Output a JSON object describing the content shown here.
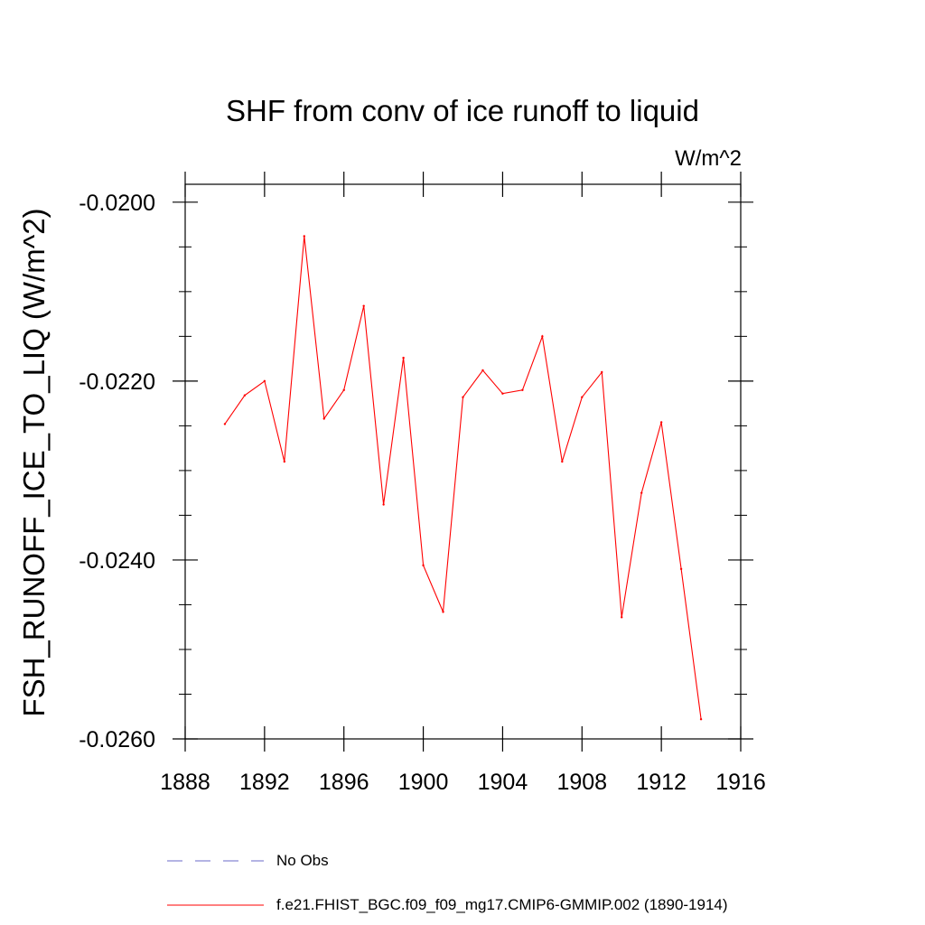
{
  "chart_data": {
    "type": "line",
    "title": "SHF from conv of ice runoff to liquid",
    "units_label": "W/m^2",
    "xlabel": "",
    "ylabel": "FSH_RUNOFF_ICE_TO_LIQ  (W/m^2)",
    "xlim": [
      1888,
      1916
    ],
    "ylim": [
      -0.026,
      -0.0198
    ],
    "x_ticks": [
      1888,
      1892,
      1896,
      1900,
      1904,
      1908,
      1912,
      1916
    ],
    "x_tick_labels": [
      "1888",
      "1892",
      "1896",
      "1900",
      "1904",
      "1908",
      "1912",
      "1916"
    ],
    "y_ticks": [
      -0.026,
      -0.024,
      -0.022,
      -0.02
    ],
    "y_tick_labels": [
      "-0.0260",
      "-0.0240",
      "-0.0220",
      "-0.0200"
    ],
    "y_minor_ticks": [
      -0.0255,
      -0.025,
      -0.0245,
      -0.0235,
      -0.023,
      -0.0225,
      -0.0215,
      -0.021,
      -0.0205
    ],
    "series": [
      {
        "name": "f.e21.FHIST_BGC.f09_f09_mg17.CMIP6-GMMIP.002 (1890-1914)",
        "color": "#ff0000",
        "x": [
          1890,
          1891,
          1892,
          1893,
          1894,
          1895,
          1896,
          1897,
          1898,
          1899,
          1900,
          1901,
          1902,
          1903,
          1904,
          1905,
          1906,
          1907,
          1908,
          1909,
          1910,
          1911,
          1912,
          1913,
          1914
        ],
        "y": [
          -0.02248,
          -0.02216,
          -0.022,
          -0.0229,
          -0.02038,
          -0.02242,
          -0.0221,
          -0.02116,
          -0.02338,
          -0.02174,
          -0.02406,
          -0.02458,
          -0.02218,
          -0.02188,
          -0.02214,
          -0.0221,
          -0.0215,
          -0.0229,
          -0.02218,
          -0.0219,
          -0.02464,
          -0.02325,
          -0.02246,
          -0.0241,
          -0.02578
        ]
      }
    ],
    "legend": [
      {
        "label": "No Obs",
        "color": "#6a6ac8",
        "style": "dashed"
      },
      {
        "label": "f.e21.FHIST_BGC.f09_f09_mg17.CMIP6-GMMIP.002 (1890-1914)",
        "color": "#ff0000",
        "style": "solid"
      }
    ]
  }
}
